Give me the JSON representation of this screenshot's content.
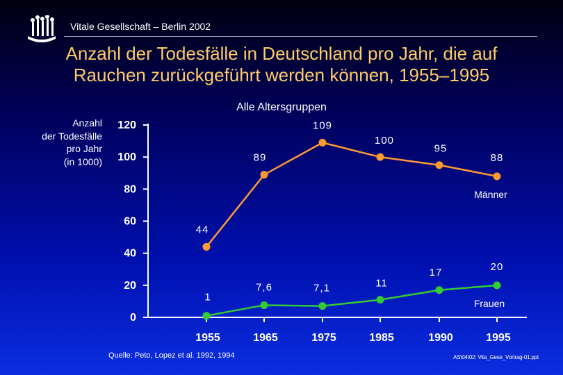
{
  "header": {
    "text": "Vitale Gesellschaft – Berlin 2002"
  },
  "title_lines": [
    "Anzahl der Todesfälle in Deutschland pro Jahr, die auf",
    "Rauchen zurückgeführt werden können, 1955–1995"
  ],
  "chart_data": {
    "type": "line",
    "subtitle": "Alle Altersgruppen",
    "ylabel_lines": [
      "Anzahl",
      "der Todesfälle",
      "pro Jahr",
      "(in 1000)"
    ],
    "x": [
      "1955",
      "1965",
      "1975",
      "1985",
      "1990",
      "1995"
    ],
    "ylim": [
      0,
      120
    ],
    "yticks": [
      "0",
      "20",
      "40",
      "60",
      "80",
      "100",
      "120"
    ],
    "grid": false,
    "series": [
      {
        "name": "Männer",
        "color": "#ff9933",
        "values": [
          44,
          89,
          109,
          100,
          95,
          88
        ],
        "labels": [
          "44",
          "89",
          "109",
          "100",
          "95",
          "88"
        ]
      },
      {
        "name": "Frauen",
        "color": "#33cc33",
        "values": [
          1,
          7.6,
          7.1,
          11,
          17,
          20
        ],
        "labels": [
          "1",
          "7,6",
          "7,1",
          "11",
          "17",
          "20"
        ]
      }
    ]
  },
  "footer": {
    "source": "Quelle: Peto, Lopez et al. 1992, 1994",
    "fileref": "AS\\04\\02: Vita_Gese_Vortrag-01.ppt"
  }
}
